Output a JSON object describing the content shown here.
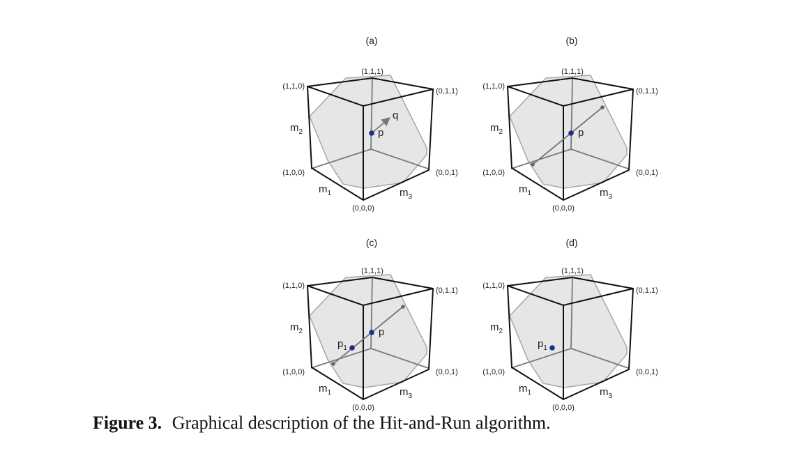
{
  "panels": [
    {
      "id": "a",
      "label": "(a)",
      "vertices": {
        "v111": "(1,1,1)",
        "v110": "(1,1,0)",
        "v011": "(0,1,1)",
        "v100": "(1,0,0)",
        "v001": "(0,0,1)",
        "v000": "(0,0,0)"
      },
      "margins": [
        {
          "base": "m",
          "sub": "1"
        },
        {
          "base": "m",
          "sub": "2"
        },
        {
          "base": "m",
          "sub": "3"
        }
      ],
      "points": [
        {
          "base": "p",
          "sub": ""
        }
      ],
      "direction_label": "q"
    },
    {
      "id": "b",
      "label": "(b)",
      "vertices": {
        "v111": "(1,1,1)",
        "v110": "(1,1,0)",
        "v011": "(0,1,1)",
        "v100": "(1,0,0)",
        "v001": "(0,0,1)",
        "v000": "(0,0,0)"
      },
      "margins": [
        {
          "base": "m",
          "sub": "1"
        },
        {
          "base": "m",
          "sub": "2"
        },
        {
          "base": "m",
          "sub": "3"
        }
      ],
      "points": [
        {
          "base": "p",
          "sub": ""
        }
      ]
    },
    {
      "id": "c",
      "label": "(c)",
      "vertices": {
        "v111": "(1,1,1)",
        "v110": "(1,1,0)",
        "v011": "(0,1,1)",
        "v100": "(1,0,0)",
        "v001": "(0,0,1)",
        "v000": "(0,0,0)"
      },
      "margins": [
        {
          "base": "m",
          "sub": "1"
        },
        {
          "base": "m",
          "sub": "2"
        },
        {
          "base": "m",
          "sub": "3"
        }
      ],
      "points": [
        {
          "base": "p",
          "sub": ""
        },
        {
          "base": "p",
          "sub": "1"
        }
      ]
    },
    {
      "id": "d",
      "label": "(d)",
      "vertices": {
        "v111": "(1,1,1)",
        "v110": "(1,1,0)",
        "v011": "(0,1,1)",
        "v100": "(1,0,0)",
        "v001": "(0,0,1)",
        "v000": "(0,0,0)"
      },
      "margins": [
        {
          "base": "m",
          "sub": "1"
        },
        {
          "base": "m",
          "sub": "2"
        },
        {
          "base": "m",
          "sub": "3"
        }
      ],
      "points": [
        {
          "base": "p",
          "sub": "1"
        }
      ]
    }
  ],
  "caption": {
    "figure_label": "Figure 3.",
    "text": "Graphical description of the Hit-and-Run algorithm."
  },
  "colors": {
    "point": "#1b2f86",
    "endpoint": "#666666",
    "polytope_fill": "#e6e6e6",
    "cube_edge": "#111111"
  }
}
